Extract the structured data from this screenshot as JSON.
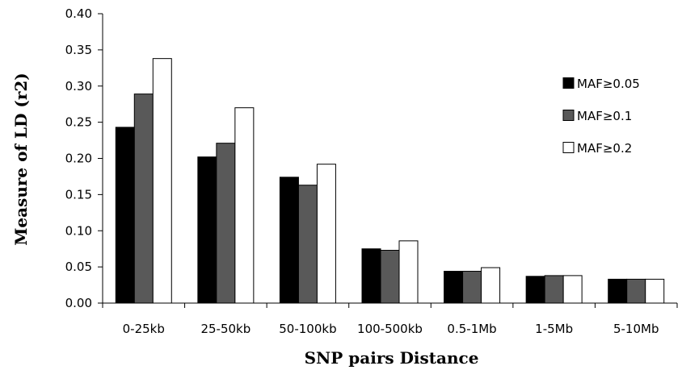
{
  "chart_data": {
    "type": "bar",
    "title": "",
    "xlabel": "SNP pairs Distance",
    "ylabel": "Measure of LD (r2)",
    "ylim": [
      0,
      0.4
    ],
    "yticks": [
      "0.00",
      "0.05",
      "0.10",
      "0.15",
      "0.20",
      "0.25",
      "0.30",
      "0.35",
      "0.40"
    ],
    "categories": [
      "0-25kb",
      "25-50kb",
      "50-100kb",
      "100-500kb",
      "0.5-1Mb",
      "1-5Mb",
      "5-10Mb"
    ],
    "series": [
      {
        "name": "MAF≥0.05",
        "color": "#000000",
        "values": [
          0.243,
          0.202,
          0.174,
          0.075,
          0.044,
          0.037,
          0.033
        ]
      },
      {
        "name": "MAF≥0.1",
        "color": "#595959",
        "values": [
          0.289,
          0.221,
          0.163,
          0.073,
          0.044,
          0.038,
          0.033
        ]
      },
      {
        "name": "MAF≥0.2",
        "color": "#ffffff",
        "values": [
          0.338,
          0.27,
          0.192,
          0.086,
          0.049,
          0.038,
          0.033
        ]
      }
    ],
    "legend_position": "right",
    "grid": false
  }
}
